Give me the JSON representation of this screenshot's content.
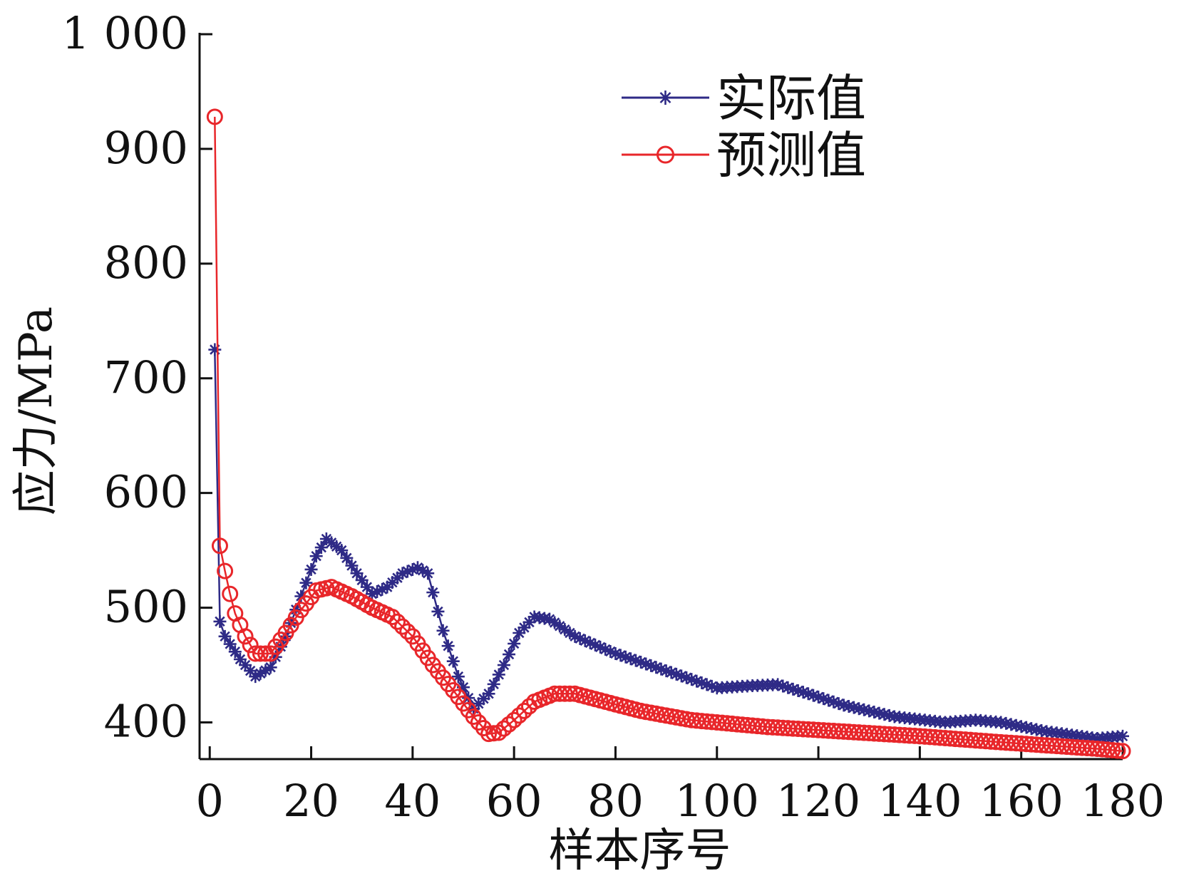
{
  "chart_data": {
    "type": "line",
    "xlabel": "样本序号",
    "ylabel": "应力/MPa",
    "xlim": [
      -2,
      180
    ],
    "ylim": [
      368,
      1000
    ],
    "x_ticks": [
      0,
      20,
      40,
      60,
      80,
      100,
      120,
      140,
      160,
      180
    ],
    "x_tick_labels": [
      "0",
      "20",
      "40",
      "60",
      "80",
      "100",
      "120",
      "140",
      "160",
      "180"
    ],
    "y_ticks": [
      400,
      500,
      600,
      700,
      800,
      900,
      1000
    ],
    "y_tick_labels": [
      "400",
      "500",
      "600",
      "700",
      "800",
      "900",
      "1 000"
    ],
    "grid": false,
    "legend_position": "top-right",
    "series": [
      {
        "name": "实际值",
        "color": "#2e2a86",
        "marker": "asterisk",
        "points": [
          [
            1,
            725
          ],
          [
            2,
            488
          ],
          [
            3,
            475
          ],
          [
            6,
            455
          ],
          [
            9,
            440
          ],
          [
            12,
            448
          ],
          [
            15,
            475
          ],
          [
            18,
            510
          ],
          [
            21,
            545
          ],
          [
            23,
            560
          ],
          [
            26,
            550
          ],
          [
            29,
            530
          ],
          [
            32,
            512
          ],
          [
            35,
            518
          ],
          [
            38,
            530
          ],
          [
            41,
            535
          ],
          [
            43,
            530
          ],
          [
            46,
            480
          ],
          [
            49,
            440
          ],
          [
            52,
            412
          ],
          [
            55,
            425
          ],
          [
            58,
            450
          ],
          [
            61,
            478
          ],
          [
            64,
            492
          ],
          [
            67,
            490
          ],
          [
            72,
            475
          ],
          [
            80,
            460
          ],
          [
            90,
            445
          ],
          [
            100,
            430
          ],
          [
            107,
            432
          ],
          [
            112,
            433
          ],
          [
            118,
            425
          ],
          [
            125,
            415
          ],
          [
            135,
            405
          ],
          [
            145,
            400
          ],
          [
            151,
            402
          ],
          [
            156,
            400
          ],
          [
            165,
            392
          ],
          [
            175,
            386
          ],
          [
            180,
            388
          ]
        ]
      },
      {
        "name": "预测值",
        "color": "#e8262a",
        "marker": "circle",
        "points": [
          [
            1,
            928
          ],
          [
            2,
            554
          ],
          [
            3,
            532
          ],
          [
            4,
            512
          ],
          [
            5,
            495
          ],
          [
            7,
            475
          ],
          [
            9,
            460
          ],
          [
            12,
            460
          ],
          [
            15,
            478
          ],
          [
            18,
            498
          ],
          [
            21,
            515
          ],
          [
            24,
            518
          ],
          [
            28,
            510
          ],
          [
            32,
            500
          ],
          [
            36,
            492
          ],
          [
            40,
            475
          ],
          [
            44,
            450
          ],
          [
            48,
            428
          ],
          [
            52,
            405
          ],
          [
            55,
            390
          ],
          [
            57,
            391
          ],
          [
            60,
            402
          ],
          [
            64,
            418
          ],
          [
            68,
            425
          ],
          [
            72,
            425
          ],
          [
            78,
            418
          ],
          [
            85,
            410
          ],
          [
            95,
            402
          ],
          [
            110,
            396
          ],
          [
            125,
            392
          ],
          [
            140,
            388
          ],
          [
            155,
            383
          ],
          [
            165,
            380
          ],
          [
            175,
            377
          ],
          [
            180,
            375
          ]
        ]
      }
    ]
  }
}
